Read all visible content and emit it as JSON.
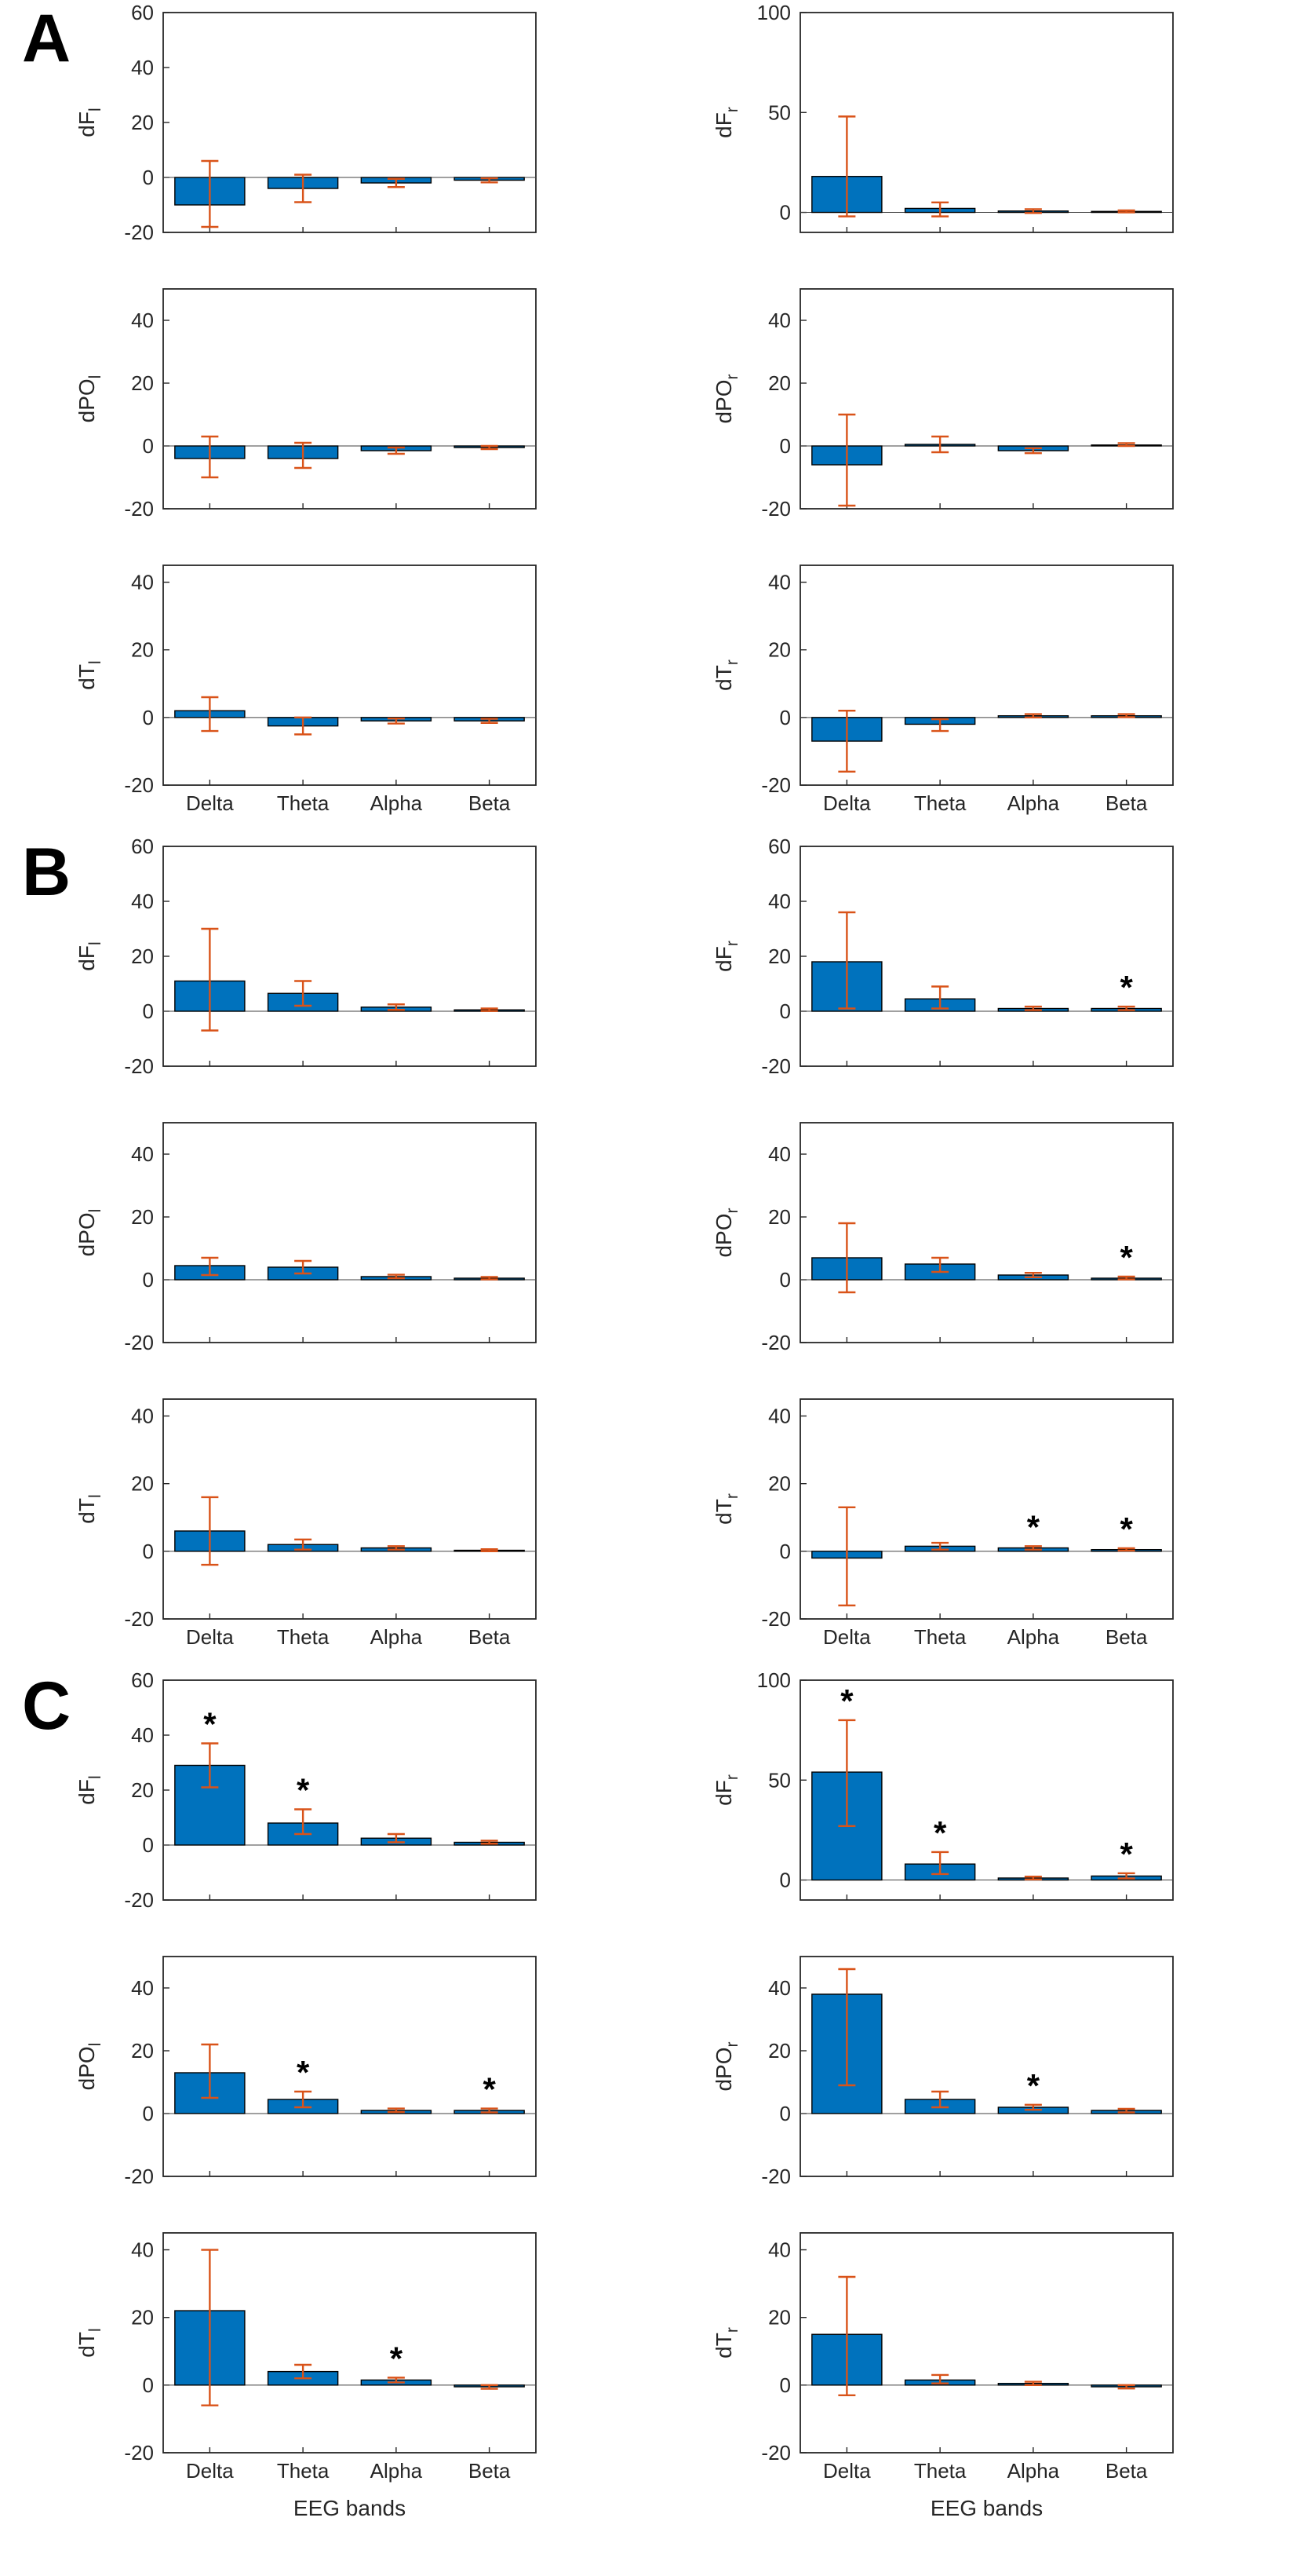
{
  "colors": {
    "bar": "#0072BD",
    "bar_edge": "#000000",
    "error": "#D95319",
    "axis": "#262626",
    "zero_line": "#404040",
    "background": "#ffffff"
  },
  "chart_data": {
    "type": "bar",
    "categories": [
      "Delta",
      "Theta",
      "Alpha",
      "Beta"
    ],
    "xlabel": "EEG bands",
    "panels": [
      {
        "label": "A",
        "subplots": [
          {
            "ylabel_base": "dF",
            "ylabel_sub": "l",
            "ylim": [
              -20,
              60
            ],
            "yticks": [
              -20,
              0,
              20,
              40,
              60
            ],
            "values": [
              -10,
              -4,
              -2,
              -1
            ],
            "err_lo": [
              -18,
              -9,
              -3.5,
              -1.8
            ],
            "err_hi": [
              6,
              1,
              -0.5,
              -0.3
            ],
            "sig": [
              false,
              false,
              false,
              false
            ],
            "show_xticklabels": false,
            "show_xlabel": false
          },
          {
            "ylabel_base": "dF",
            "ylabel_sub": "r",
            "ylim": [
              -10,
              100
            ],
            "yticks": [
              0,
              50,
              100
            ],
            "values": [
              18,
              2,
              0.7,
              0.5
            ],
            "err_lo": [
              -2,
              -2,
              -0.3,
              0
            ],
            "err_hi": [
              48,
              5,
              1.6,
              1
            ],
            "sig": [
              false,
              false,
              false,
              false
            ],
            "show_xticklabels": false,
            "show_xlabel": false
          },
          {
            "ylabel_base": "dPO",
            "ylabel_sub": "l",
            "ylim": [
              -20,
              50
            ],
            "yticks": [
              -20,
              0,
              20,
              40
            ],
            "values": [
              -4,
              -4,
              -1.5,
              -0.5
            ],
            "err_lo": [
              -10,
              -7,
              -2.5,
              -1
            ],
            "err_hi": [
              3,
              1,
              -0.5,
              0
            ],
            "sig": [
              false,
              false,
              false,
              false
            ],
            "show_xticklabels": false,
            "show_xlabel": false
          },
          {
            "ylabel_base": "dPO",
            "ylabel_sub": "r",
            "ylim": [
              -20,
              50
            ],
            "yticks": [
              -20,
              0,
              20,
              40
            ],
            "values": [
              -6,
              0.5,
              -1.5,
              0.3
            ],
            "err_lo": [
              -19,
              -2,
              -2.3,
              0
            ],
            "err_hi": [
              10,
              3,
              -0.7,
              0.9
            ],
            "sig": [
              false,
              false,
              false,
              false
            ],
            "show_xticklabels": false,
            "show_xlabel": false
          },
          {
            "ylabel_base": "dT",
            "ylabel_sub": "l",
            "ylim": [
              -20,
              45
            ],
            "yticks": [
              -20,
              0,
              20,
              40
            ],
            "values": [
              2,
              -2.5,
              -1,
              -1
            ],
            "err_lo": [
              -4,
              -5,
              -1.8,
              -1.6
            ],
            "err_hi": [
              6,
              0,
              -0.3,
              -0.4
            ],
            "sig": [
              false,
              false,
              false,
              false
            ],
            "show_xticklabels": true,
            "show_xlabel": false
          },
          {
            "ylabel_base": "dT",
            "ylabel_sub": "r",
            "ylim": [
              -20,
              45
            ],
            "yticks": [
              -20,
              0,
              20,
              40
            ],
            "values": [
              -7,
              -2,
              0.5,
              0.5
            ],
            "err_lo": [
              -16,
              -4,
              0,
              0.1
            ],
            "err_hi": [
              2,
              -0.5,
              1,
              1
            ],
            "sig": [
              false,
              false,
              false,
              false
            ],
            "show_xticklabels": true,
            "show_xlabel": false
          }
        ]
      },
      {
        "label": "B",
        "subplots": [
          {
            "ylabel_base": "dF",
            "ylabel_sub": "l",
            "ylim": [
              -20,
              60
            ],
            "yticks": [
              -20,
              0,
              20,
              40,
              60
            ],
            "values": [
              11,
              6.5,
              1.5,
              0.5
            ],
            "err_lo": [
              -7,
              2,
              0.5,
              0.1
            ],
            "err_hi": [
              30,
              11,
              2.5,
              1
            ],
            "sig": [
              false,
              false,
              false,
              false
            ],
            "show_xticklabels": false,
            "show_xlabel": false
          },
          {
            "ylabel_base": "dF",
            "ylabel_sub": "r",
            "ylim": [
              -20,
              60
            ],
            "yticks": [
              -20,
              0,
              20,
              40,
              60
            ],
            "values": [
              18,
              4.5,
              1,
              1
            ],
            "err_lo": [
              1,
              1,
              0.4,
              0.4
            ],
            "err_hi": [
              36,
              9,
              1.7,
              1.7
            ],
            "sig": [
              false,
              false,
              false,
              true
            ],
            "show_xticklabels": false,
            "show_xlabel": false
          },
          {
            "ylabel_base": "dPO",
            "ylabel_sub": "l",
            "ylim": [
              -20,
              50
            ],
            "yticks": [
              -20,
              0,
              20,
              40
            ],
            "values": [
              4.5,
              4,
              1,
              0.5
            ],
            "err_lo": [
              1.5,
              2,
              0.5,
              0.1
            ],
            "err_hi": [
              7,
              6,
              1.6,
              0.9
            ],
            "sig": [
              false,
              false,
              false,
              false
            ],
            "show_xticklabels": false,
            "show_xlabel": false
          },
          {
            "ylabel_base": "dPO",
            "ylabel_sub": "r",
            "ylim": [
              -20,
              50
            ],
            "yticks": [
              -20,
              0,
              20,
              40
            ],
            "values": [
              7,
              5,
              1.5,
              0.5
            ],
            "err_lo": [
              -4,
              2.5,
              0.8,
              0.1
            ],
            "err_hi": [
              18,
              7,
              2.2,
              1
            ],
            "sig": [
              false,
              false,
              false,
              true
            ],
            "show_xticklabels": false,
            "show_xlabel": false
          },
          {
            "ylabel_base": "dT",
            "ylabel_sub": "l",
            "ylim": [
              -20,
              45
            ],
            "yticks": [
              -20,
              0,
              20,
              40
            ],
            "values": [
              6,
              2,
              1,
              0.3
            ],
            "err_lo": [
              -4,
              0.5,
              0.5,
              0
            ],
            "err_hi": [
              16,
              3.5,
              1.5,
              0.6
            ],
            "sig": [
              false,
              false,
              false,
              false
            ],
            "show_xticklabels": true,
            "show_xlabel": false
          },
          {
            "ylabel_base": "dT",
            "ylabel_sub": "r",
            "ylim": [
              -20,
              45
            ],
            "yticks": [
              -20,
              0,
              20,
              40
            ],
            "values": [
              -2,
              1.5,
              1,
              0.5
            ],
            "err_lo": [
              -16,
              0.5,
              0.5,
              0.2
            ],
            "err_hi": [
              13,
              2.5,
              1.5,
              0.9
            ],
            "sig": [
              false,
              false,
              true,
              true
            ],
            "show_xticklabels": true,
            "show_xlabel": false
          }
        ]
      },
      {
        "label": "C",
        "subplots": [
          {
            "ylabel_base": "dF",
            "ylabel_sub": "l",
            "ylim": [
              -20,
              60
            ],
            "yticks": [
              -20,
              0,
              20,
              40,
              60
            ],
            "values": [
              29,
              8,
              2.5,
              1
            ],
            "err_lo": [
              21,
              4,
              1,
              0.5
            ],
            "err_hi": [
              37,
              13,
              4,
              1.6
            ],
            "sig": [
              true,
              true,
              false,
              false
            ],
            "show_xticklabels": false,
            "show_xlabel": false
          },
          {
            "ylabel_base": "dF",
            "ylabel_sub": "r",
            "ylim": [
              -10,
              100
            ],
            "yticks": [
              0,
              50,
              100
            ],
            "values": [
              54,
              8,
              1,
              2
            ],
            "err_lo": [
              27,
              3,
              0.3,
              0.8
            ],
            "err_hi": [
              80,
              14,
              1.7,
              3.4
            ],
            "sig": [
              true,
              true,
              false,
              true
            ],
            "show_xticklabels": false,
            "show_xlabel": false
          },
          {
            "ylabel_base": "dPO",
            "ylabel_sub": "l",
            "ylim": [
              -20,
              50
            ],
            "yticks": [
              -20,
              0,
              20,
              40
            ],
            "values": [
              13,
              4.5,
              1,
              1
            ],
            "err_lo": [
              5,
              2,
              0.5,
              0.4
            ],
            "err_hi": [
              22,
              7,
              1.6,
              1.6
            ],
            "sig": [
              false,
              true,
              false,
              true
            ],
            "show_xticklabels": false,
            "show_xlabel": false
          },
          {
            "ylabel_base": "dPO",
            "ylabel_sub": "r",
            "ylim": [
              -20,
              50
            ],
            "yticks": [
              -20,
              0,
              20,
              40
            ],
            "values": [
              38,
              4.5,
              2,
              1
            ],
            "err_lo": [
              9,
              2,
              1.2,
              0.4
            ],
            "err_hi": [
              46,
              7,
              2.8,
              1.5
            ],
            "sig": [
              false,
              false,
              true,
              false
            ],
            "show_xticklabels": false,
            "show_xlabel": false
          },
          {
            "ylabel_base": "dT",
            "ylabel_sub": "l",
            "ylim": [
              -20,
              45
            ],
            "yticks": [
              -20,
              0,
              20,
              40
            ],
            "values": [
              22,
              4,
              1.5,
              -0.5
            ],
            "err_lo": [
              -6,
              2,
              0.8,
              -1.1
            ],
            "err_hi": [
              40,
              6,
              2.2,
              0
            ],
            "sig": [
              false,
              false,
              true,
              false
            ],
            "show_xticklabels": true,
            "show_xlabel": true
          },
          {
            "ylabel_base": "dT",
            "ylabel_sub": "r",
            "ylim": [
              -20,
              45
            ],
            "yticks": [
              -20,
              0,
              20,
              40
            ],
            "values": [
              15,
              1.5,
              0.5,
              -0.5
            ],
            "err_lo": [
              -3,
              0.5,
              0,
              -1
            ],
            "err_hi": [
              32,
              3,
              1,
              0
            ],
            "sig": [
              false,
              false,
              false,
              false
            ],
            "show_xticklabels": true,
            "show_xlabel": true
          }
        ]
      }
    ]
  }
}
